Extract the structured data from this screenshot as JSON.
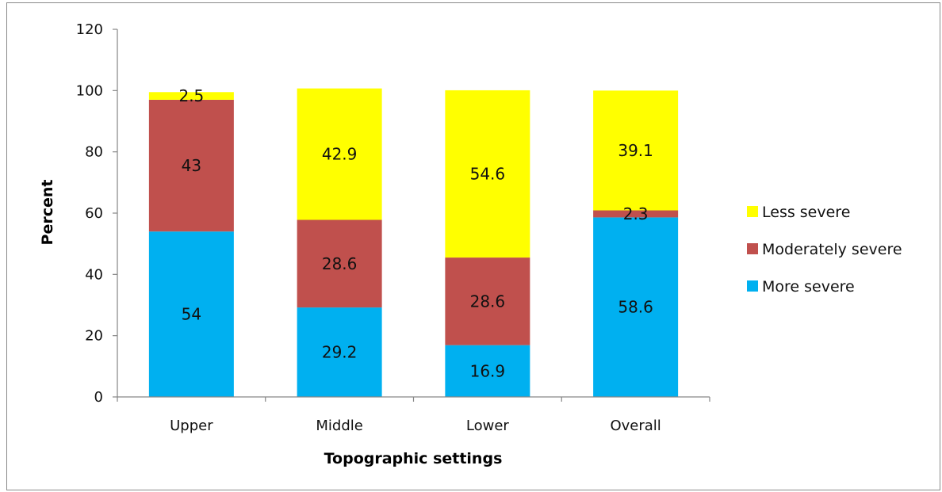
{
  "chart_data": {
    "type": "bar",
    "stacked": true,
    "title": "",
    "xlabel": "Topographic settings",
    "ylabel": "Percent",
    "ylim": [
      0,
      120
    ],
    "yticks": [
      0,
      20,
      40,
      60,
      80,
      100,
      120
    ],
    "categories": [
      "Upper",
      "Middle",
      "Lower",
      "Overall"
    ],
    "series": [
      {
        "name": "More severe",
        "color": "#00b0f0",
        "values": [
          54,
          29.2,
          16.9,
          58.6
        ]
      },
      {
        "name": "Moderately severe",
        "color": "#c0504d",
        "values": [
          43,
          28.6,
          28.6,
          2.3
        ]
      },
      {
        "name": "Less severe",
        "color": "#ffff00",
        "values": [
          2.5,
          42.9,
          54.6,
          39.1
        ]
      }
    ],
    "legend": {
      "placement": "right",
      "order": [
        "Less severe",
        "Moderately severe",
        "More severe"
      ]
    },
    "grid": false
  }
}
